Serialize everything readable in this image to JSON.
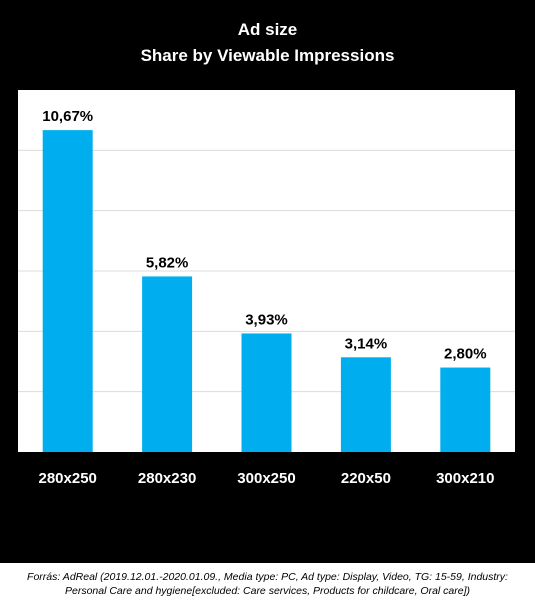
{
  "chart_data": {
    "type": "bar",
    "title": "Ad size",
    "subtitle": "Share by Viewable Impressions",
    "categories": [
      "280x250",
      "280x230",
      "300x250",
      "220x50",
      "300x210"
    ],
    "values": [
      10.67,
      5.82,
      3.93,
      3.14,
      2.8
    ],
    "data_labels": [
      "10,67%",
      "5,82%",
      "3,93%",
      "3,14%",
      "2,80%"
    ],
    "ylim": [
      0,
      12
    ],
    "grid": true,
    "xlabel": "",
    "ylabel": ""
  },
  "colors": {
    "bar": "#00aeef",
    "background": "#000000",
    "plot_background": "#ffffff",
    "text_light": "#ffffff",
    "gridline": "#dcdcdc"
  },
  "footer": {
    "line1": "Forrás: AdReal (2019.12.01.-2020.01.09., Media type: PC, Ad type: Display, Video, TG: 15-59, Industry:",
    "line2": "Personal Care and hygiene[excluded: Care services, Products for childcare, Oral care])"
  }
}
